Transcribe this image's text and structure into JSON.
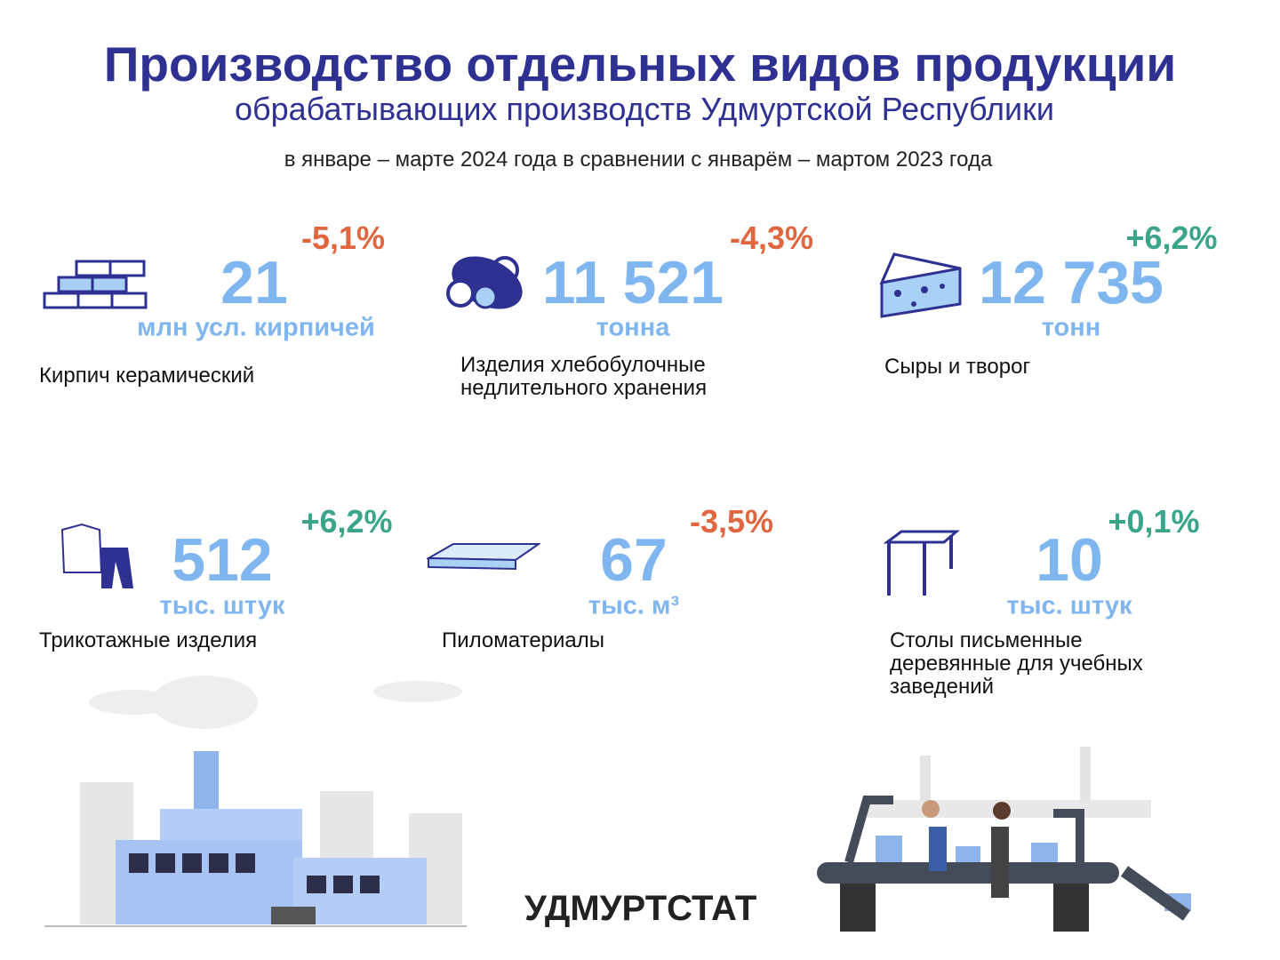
{
  "header": {
    "title": "Производство отдельных видов продукции",
    "subtitle": "обрабатывающих производств Удмуртской Республики",
    "period": "в январе – марте 2024 года в сравнении с январём – мартом 2023 года"
  },
  "items": [
    {
      "value": "21",
      "unit": "млн усл. кирпичей",
      "change": "-5,1%",
      "label": "Кирпич керамический"
    },
    {
      "value": "11 521",
      "unit": "тонна",
      "change": "-4,3%",
      "label": "Изделия хлебобулочные недлительного хранения"
    },
    {
      "value": "12 735",
      "unit": "тонн",
      "change": "+6,2%",
      "label": "Сыры и творог"
    },
    {
      "value": "512",
      "unit": "тыс. штук",
      "change": "+6,2%",
      "label": "Трикотажные изделия"
    },
    {
      "value": "67",
      "unit": "тыс. м³",
      "change": "-3,5%",
      "label": "Пиломатериалы"
    },
    {
      "value": "10",
      "unit": "тыс. штук",
      "change": "+0,1%",
      "label": "Столы письменные деревянные для учебных заведений"
    }
  ],
  "footer": {
    "brand": "УДМУРТСТАТ"
  }
}
